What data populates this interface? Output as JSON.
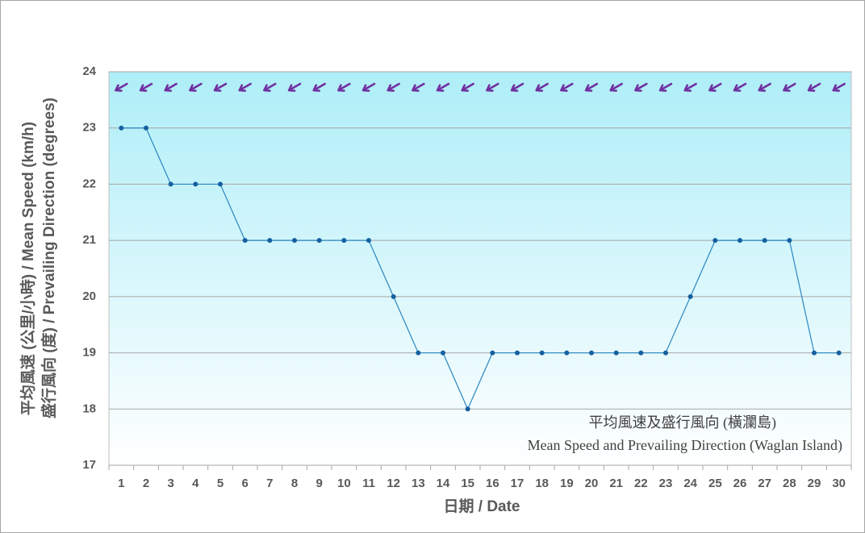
{
  "chart_data": {
    "type": "line",
    "xlabel": "日期 / Date",
    "ylabel": [
      "平均風速 (公里/小時) / Mean Speed (km/h)",
      "盛行風向 (度) / Prevailing Direction (degrees)"
    ],
    "annotation": [
      "平均風速及盛行風向 (橫瀾島)",
      "Mean Speed and Prevailing Direction (Waglan Island)"
    ],
    "categories": [
      "1",
      "2",
      "3",
      "4",
      "5",
      "6",
      "7",
      "8",
      "9",
      "10",
      "11",
      "12",
      "13",
      "14",
      "15",
      "16",
      "17",
      "18",
      "19",
      "20",
      "21",
      "22",
      "23",
      "24",
      "25",
      "26",
      "27",
      "28",
      "29",
      "30"
    ],
    "series": [
      {
        "name": "Mean Speed",
        "color": "#2a86c0",
        "values": [
          23,
          23,
          22,
          22,
          22,
          21,
          21,
          21,
          21,
          21,
          21,
          20,
          19,
          19,
          18,
          19,
          19,
          19,
          19,
          19,
          19,
          19,
          19,
          20,
          21,
          21,
          21,
          21,
          19,
          19
        ]
      },
      {
        "name": "Prevailing Direction",
        "color": "#7030a0",
        "values": [
          60,
          60,
          60,
          60,
          60,
          60,
          60,
          60,
          60,
          60,
          60,
          60,
          60,
          60,
          60,
          60,
          60,
          60,
          60,
          60,
          60,
          60,
          60,
          60,
          60,
          60,
          60,
          60,
          60,
          60
        ]
      }
    ],
    "ylim": [
      17,
      24
    ],
    "yticks": [
      17,
      18,
      19,
      20,
      21,
      22,
      23,
      24
    ],
    "grid": true
  }
}
